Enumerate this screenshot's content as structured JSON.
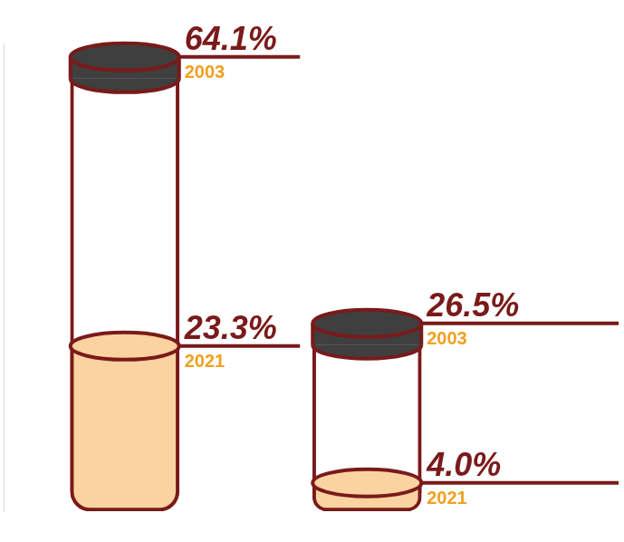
{
  "chart_data": {
    "type": "bar",
    "categories": [
      null,
      null
    ],
    "series": [
      {
        "name": "2003",
        "color": "#ffffff",
        "values": [
          64.1,
          26.5
        ],
        "value_labels": [
          "64.1%",
          "26.5%"
        ]
      },
      {
        "name": "2021",
        "color": "#fbd3a0",
        "values": [
          23.3,
          4.0
        ],
        "value_labels": [
          "23.3%",
          "4.0%"
        ]
      }
    ],
    "ylim": [
      0,
      66
    ],
    "yticks": [],
    "stacked": false,
    "grid": false,
    "data_labels": true,
    "tick_labels": false
  }
}
